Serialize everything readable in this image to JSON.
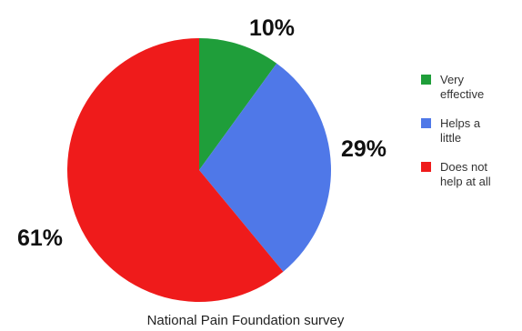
{
  "chart_data": {
    "type": "pie",
    "title": "",
    "categories": [
      "Very effective",
      "Helps a little",
      "Does not help at all"
    ],
    "values": [
      10,
      29,
      61
    ],
    "labels": [
      "10%",
      "29%",
      "61%"
    ],
    "colors": [
      "#1f9e3a",
      "#4f78e8",
      "#ef1b1b"
    ],
    "legend": {
      "position": "right",
      "entries": [
        {
          "lines": [
            "Very",
            "effective"
          ],
          "color": "#1f9e3a"
        },
        {
          "lines": [
            "Helps a",
            "little"
          ],
          "color": "#4f78e8"
        },
        {
          "lines": [
            "Does not",
            "help at all"
          ],
          "color": "#ef1b1b"
        }
      ]
    },
    "source": "National Pain Foundation survey",
    "start_angle": "12 o'clock",
    "direction": "clockwise"
  }
}
